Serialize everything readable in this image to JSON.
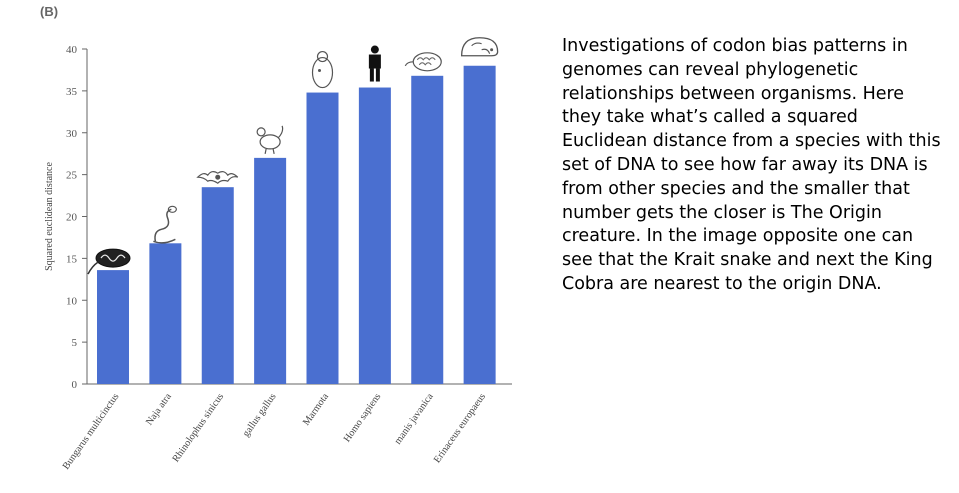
{
  "panel_label": "(B)",
  "description": "Investigations of codon bias patterns in genomes can reveal phylogenetic relationships between organisms. Here they take what’s called a squared Euclidean distance from a species with this set of DNA to see how far away its DNA is from other species and the smaller that number gets the closer is The Origin creature. In the image opposite one can see that the Krait snake and next the King Cobra are nearest to the origin DNA.",
  "chart_data": {
    "type": "bar",
    "title": "",
    "xlabel": "",
    "ylabel": "Squared euclidean  distance",
    "ylim": [
      0,
      40
    ],
    "yticks": [
      0,
      5,
      10,
      15,
      20,
      25,
      30,
      35,
      40
    ],
    "categories": [
      "Bungarus multicinctus",
      "Naja atra",
      "Rhinolophus sinicus",
      "gallus gallus",
      "Marmota",
      "Homo sapiens",
      "manis javanica",
      "Erinaceus europaeus"
    ],
    "values": [
      13.6,
      16.8,
      23.5,
      27.0,
      34.8,
      35.4,
      36.8,
      38.0
    ],
    "bar_color": "#4a6fd0",
    "icons": [
      "krait-icon",
      "cobra-icon",
      "bat-icon",
      "chicken-icon",
      "marmot-icon",
      "human-icon",
      "pangolin-icon",
      "hedgehog-icon"
    ]
  }
}
